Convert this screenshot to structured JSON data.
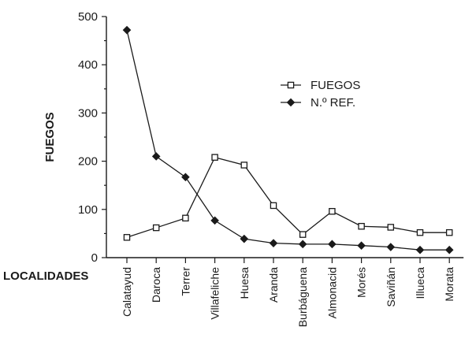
{
  "chart_data": {
    "type": "line",
    "title": "",
    "xlabel": "LOCALIDADES",
    "ylabel": "FUEGOS",
    "ylim": [
      0,
      500
    ],
    "yticks": [
      "0",
      "100",
      "200",
      "300",
      "400",
      "500"
    ],
    "categories": [
      "Calatayud",
      "Daroca",
      "Terrer",
      "Villafeliche",
      "Huesa",
      "Aranda",
      "Burbáguena",
      "Almonacid",
      "Morés",
      "Saviñán",
      "Illueca",
      "Morata"
    ],
    "series": [
      {
        "name": "FUEGOS",
        "marker": "open-square",
        "values": [
          42,
          62,
          82,
          208,
          192,
          108,
          48,
          96,
          65,
          63,
          52,
          52
        ]
      },
      {
        "name": "N.º REF.",
        "marker": "filled-diamond",
        "values": [
          472,
          210,
          167,
          77,
          39,
          30,
          28,
          28,
          25,
          22,
          16,
          16
        ]
      }
    ],
    "legend_position": "top-right",
    "grid": false
  }
}
